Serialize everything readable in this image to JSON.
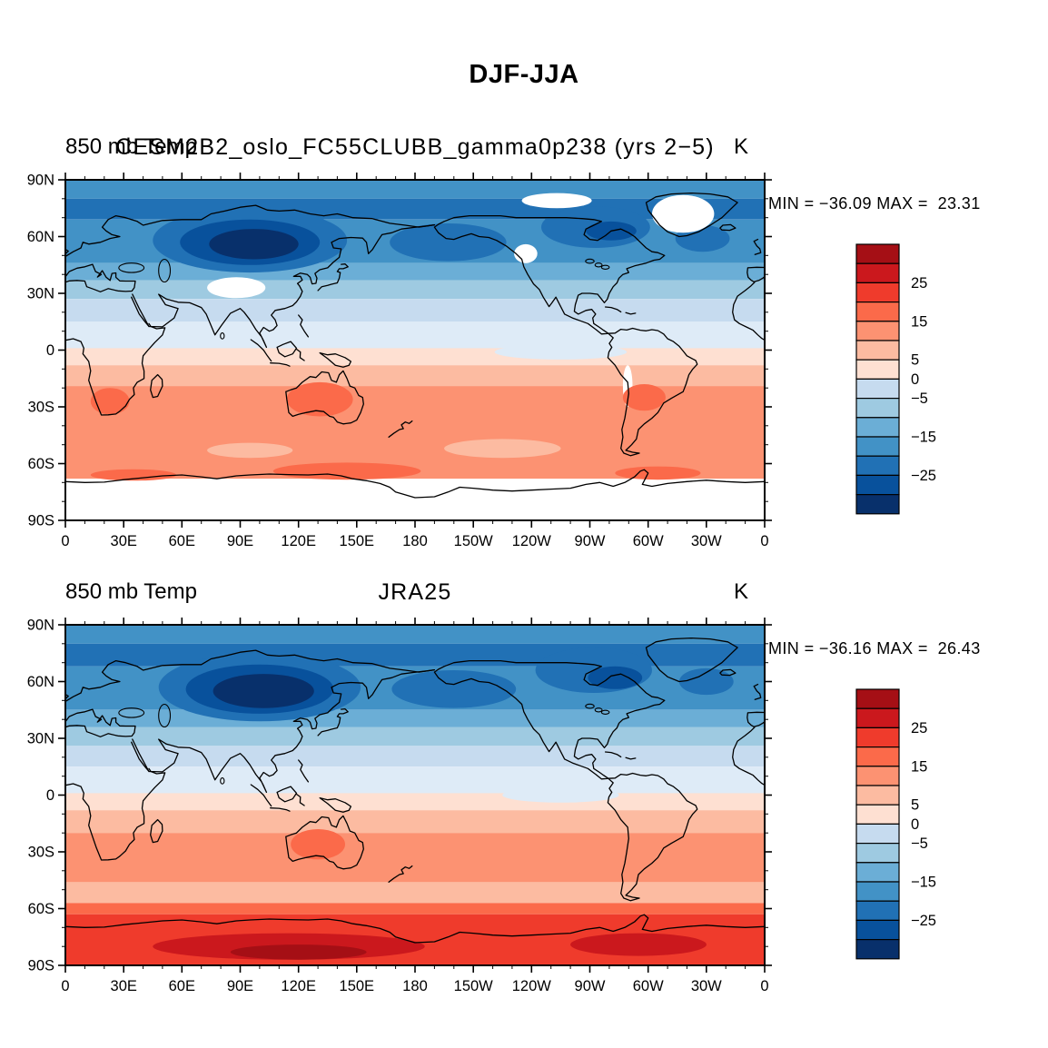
{
  "page": {
    "title": "DJF-JJA"
  },
  "panels": [
    {
      "left_title": "850 mb Temp",
      "center_title": "CESM2B2_oslo_FC55CLUBB_gamma0p238 (yrs 2−5)",
      "units": "K",
      "stats": "MIN = −36.09 MAX =  23.31",
      "min": -36.09,
      "max": 23.31
    },
    {
      "left_title": "850 mb Temp",
      "center_title": "JRA25",
      "units": "K",
      "stats": "MIN = −36.16 MAX =  26.43",
      "min": -36.16,
      "max": 26.43
    }
  ],
  "axes": {
    "lat_labels": [
      "90N",
      "60N",
      "30N",
      "0",
      "30S",
      "60S",
      "90S"
    ],
    "lon_labels": [
      "0",
      "30E",
      "60E",
      "90E",
      "120E",
      "150E",
      "180",
      "150W",
      "120W",
      "90W",
      "60W",
      "30W",
      "0"
    ]
  },
  "colorbar": {
    "colors_top_to_bottom": [
      "#A50F15",
      "#CB181D",
      "#EF3B2C",
      "#FB6A4A",
      "#FC9272",
      "#FCBBA1",
      "#FEE0D2",
      "#C6DBEF",
      "#9ECAE1",
      "#6BAED6",
      "#4292C6",
      "#2171B5",
      "#08519C",
      "#08306B"
    ],
    "labels": [
      {
        "text": "25",
        "boundary": 2
      },
      {
        "text": "15",
        "boundary": 4
      },
      {
        "text": "5",
        "boundary": 6
      },
      {
        "text": "0",
        "boundary": 7
      },
      {
        "text": "−5",
        "boundary": 8
      },
      {
        "text": "−15",
        "boundary": 10
      },
      {
        "text": "−25",
        "boundary": 12
      }
    ],
    "levels": [
      -30,
      -25,
      -20,
      -15,
      -10,
      -5,
      0,
      5,
      10,
      15,
      20,
      25,
      30
    ]
  },
  "chart_data": {
    "type": "heatmap",
    "subtype": "filled-contour global lat-lon maps (seasonal difference)",
    "title": "DJF-JJA",
    "variable": "850 mb Temp",
    "units": "K",
    "projection": "cylindrical equidistant, lon 0E to 360E, lat 90S to 90N",
    "contour_levels": [
      -30,
      -25,
      -20,
      -15,
      -10,
      -5,
      0,
      5,
      10,
      15,
      20,
      25,
      30
    ],
    "legend_position": "right vertical labelbar, one per panel",
    "grid": "off",
    "panels": [
      {
        "title": "CESM2B2_oslo_FC55CLUBB_gamma0p238 (yrs 2-5)",
        "min": -36.09,
        "max": 23.31,
        "zonal_profile": {
          "lat": [
            90,
            80,
            70,
            60,
            50,
            40,
            30,
            20,
            10,
            0,
            -10,
            -20,
            -30,
            -40,
            -50,
            -60,
            -70,
            -80,
            -90
          ],
          "mean_K": [
            -18,
            -22,
            -25,
            -26,
            -17,
            -11,
            -7,
            -3,
            -1,
            1,
            4,
            7,
            9,
            9,
            9,
            10,
            null,
            null,
            null
          ]
        },
        "notable_features": [
          {
            "label": "coldest DJF-JJA difference over Siberia",
            "lon_E": 100,
            "lat_N": 56,
            "approx_K": -36
          },
          {
            "label": "warm maximum over interior Australia",
            "lon_E": 131,
            "lat_N": -26,
            "approx_K": 14
          },
          {
            "label": "missing data (white) over Tibetan Plateau, Greenland, Canadian Arctic, Rockies, Andes, Antarctica"
          }
        ],
        "bands": [
          [
            90,
            80,
            "#4292C6"
          ],
          [
            80,
            69,
            "#2171B5"
          ],
          [
            69,
            46,
            "#4292C6"
          ],
          [
            46,
            37,
            "#6BAED6"
          ],
          [
            37,
            27,
            "#9ECAE1"
          ],
          [
            27,
            15,
            "#C6DBEF"
          ],
          [
            15,
            1,
            "#DEEBF7"
          ],
          [
            1,
            -8,
            "#FEE0D2"
          ],
          [
            -8,
            -19,
            "#FCBBA1"
          ],
          [
            -19,
            -68,
            "#FC9272"
          ],
          [
            -68,
            -90,
            "#FFFFFF"
          ]
        ],
        "blobs": [
          [
            "#2171B5",
            95,
            58,
            50,
            17
          ],
          [
            "#08519C",
            95,
            57,
            36,
            12
          ],
          [
            "#08306B",
            97,
            56,
            23,
            8
          ],
          [
            "#2171B5",
            197,
            57,
            30,
            10
          ],
          [
            "#2171B5",
            273,
            65,
            28,
            11
          ],
          [
            "#08519C",
            281,
            63,
            13,
            5
          ],
          [
            "#2171B5",
            328,
            59,
            14,
            7
          ],
          [
            "#DEEBF7",
            255,
            -1,
            34,
            4
          ],
          [
            "#FFFFFF",
            88,
            33,
            15,
            5.5
          ],
          [
            "#FFFFFF",
            318,
            72,
            16,
            10
          ],
          [
            "#FFFFFF",
            253,
            79,
            18,
            4
          ],
          [
            "#FFFFFF",
            237,
            51,
            6,
            5
          ],
          [
            "#FFFFFF",
            289.5,
            -19,
            2.5,
            11
          ],
          [
            "#FFFFFF",
            22,
            -24,
            2,
            1.5
          ],
          [
            "#FB6A4A",
            131,
            -26,
            17,
            9
          ],
          [
            "#FB6A4A",
            23,
            -27,
            10,
            7
          ],
          [
            "#FB6A4A",
            298,
            -25,
            11,
            7
          ],
          [
            "#FCBBA1",
            225,
            -52,
            30,
            5
          ],
          [
            "#FCBBA1",
            95,
            -53,
            22,
            4
          ],
          [
            "#FB6A4A",
            145,
            -64,
            38,
            4.5
          ],
          [
            "#FB6A4A",
            305,
            -65,
            22,
            3.5
          ],
          [
            "#FB6A4A",
            35,
            -66,
            22,
            3
          ]
        ]
      },
      {
        "title": "JRA25",
        "min": -36.16,
        "max": 26.43,
        "zonal_profile": {
          "lat": [
            90,
            80,
            70,
            60,
            50,
            40,
            30,
            20,
            10,
            0,
            -10,
            -20,
            -30,
            -40,
            -50,
            -60,
            -70,
            -80,
            -90
          ],
          "mean_K": [
            -18,
            -22,
            -25,
            -27,
            -18,
            -12,
            -8,
            -4,
            -1,
            1,
            4,
            7,
            9,
            8,
            6,
            11,
            16,
            22,
            24
          ]
        },
        "notable_features": [
          {
            "label": "coldest DJF-JJA difference over Siberia",
            "lon_E": 102,
            "lat_N": 55,
            "approx_K": -36
          },
          {
            "label": "strong warm difference over Antarctica",
            "lon_E": 120,
            "lat_N": -80,
            "approx_K": 25
          },
          {
            "label": "warm maximum over interior Australia",
            "lon_E": 130,
            "lat_N": -26,
            "approx_K": 13
          }
        ],
        "bands": [
          [
            90,
            80,
            "#4292C6"
          ],
          [
            80,
            68,
            "#2171B5"
          ],
          [
            68,
            45,
            "#4292C6"
          ],
          [
            45,
            36,
            "#6BAED6"
          ],
          [
            36,
            26,
            "#9ECAE1"
          ],
          [
            26,
            15,
            "#C6DBEF"
          ],
          [
            15,
            1,
            "#DEEBF7"
          ],
          [
            1,
            -8,
            "#FEE0D2"
          ],
          [
            -8,
            -20,
            "#FCBBA1"
          ],
          [
            -20,
            -46,
            "#FC9272"
          ],
          [
            -46,
            -57,
            "#FCBBA1"
          ],
          [
            -57,
            -63,
            "#FB6A4A"
          ],
          [
            -63,
            -90,
            "#EF3B2C"
          ]
        ],
        "blobs": [
          [
            "#2171B5",
            100,
            57,
            52,
            18
          ],
          [
            "#08519C",
            100,
            56,
            38,
            13
          ],
          [
            "#08306B",
            102,
            55,
            26,
            9
          ],
          [
            "#2171B5",
            200,
            56,
            32,
            10
          ],
          [
            "#2171B5",
            272,
            66,
            30,
            12
          ],
          [
            "#08519C",
            283,
            62,
            14,
            6
          ],
          [
            "#2171B5",
            330,
            60,
            14,
            7
          ],
          [
            "#DEEBF7",
            255,
            0,
            30,
            4
          ],
          [
            "#FB6A4A",
            130,
            -26,
            14,
            8
          ],
          [
            "#CB181D",
            115,
            -80,
            70,
            7
          ],
          [
            "#CB181D",
            295,
            -79,
            35,
            6
          ],
          [
            "#A50F15",
            120,
            -83,
            35,
            4
          ]
        ]
      }
    ]
  }
}
